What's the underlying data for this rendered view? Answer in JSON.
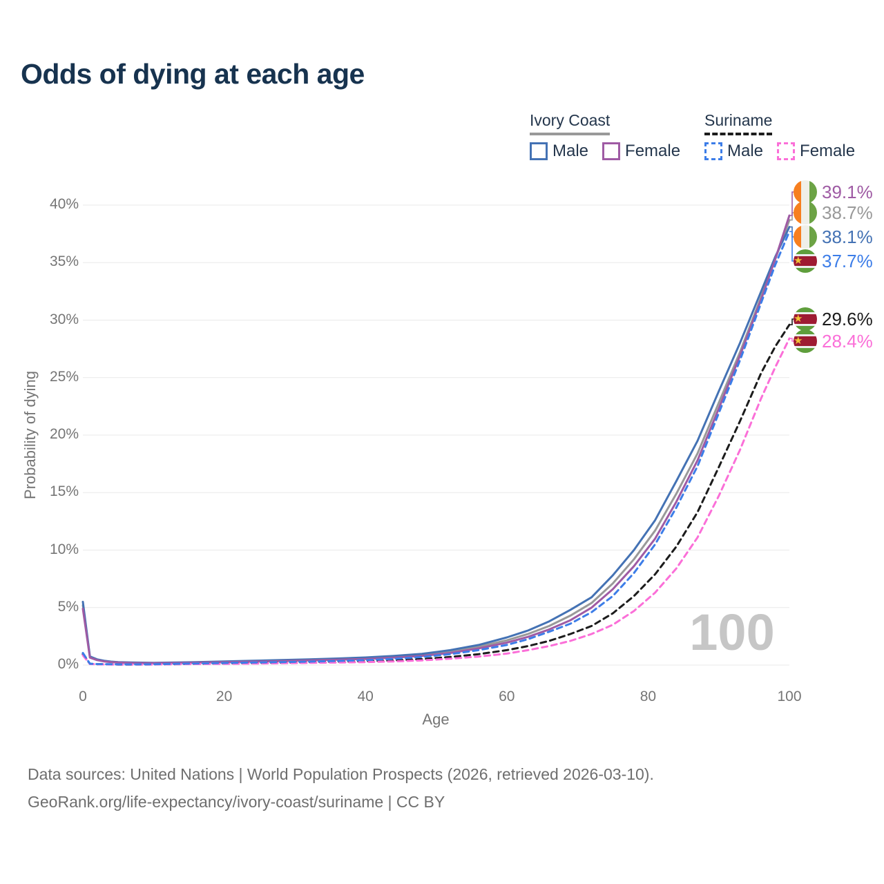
{
  "title": "Odds of dying at each age",
  "watermark": "100",
  "icons": {
    "suriname-star": "★"
  },
  "legend": {
    "groups": [
      {
        "label": "Ivory Coast",
        "line_style": "solid",
        "items": [
          {
            "label": "Male",
            "series": "ic_male"
          },
          {
            "label": "Female",
            "series": "ic_female"
          }
        ]
      },
      {
        "label": "Suriname",
        "line_style": "dashed",
        "items": [
          {
            "label": "Male",
            "series": "sur_male"
          },
          {
            "label": "Female",
            "series": "sur_female"
          }
        ]
      }
    ]
  },
  "footer": {
    "line1": "Data sources: United Nations | World Population Prospects (2026, retrieved 2026-03-10).",
    "line2": "GeoRank.org/life-expectancy/ivory-coast/suriname | CC BY"
  },
  "chart_data": {
    "type": "line",
    "title": "Odds of dying at each age",
    "xlabel": "Age",
    "ylabel": "Probability of dying",
    "xlim": [
      0,
      100
    ],
    "ylim": [
      0,
      40
    ],
    "grid": "horizontal",
    "x_ticks": [
      {
        "v": 0,
        "label": "0"
      },
      {
        "v": 20,
        "label": "20"
      },
      {
        "v": 40,
        "label": "40"
      },
      {
        "v": 60,
        "label": "60"
      },
      {
        "v": 80,
        "label": "80"
      },
      {
        "v": 100,
        "label": "100"
      }
    ],
    "y_ticks": [
      {
        "v": 0,
        "label": "0%"
      },
      {
        "v": 5,
        "label": "5%"
      },
      {
        "v": 10,
        "label": "10%"
      },
      {
        "v": 15,
        "label": "15%"
      },
      {
        "v": 20,
        "label": "20%"
      },
      {
        "v": 25,
        "label": "25%"
      },
      {
        "v": 30,
        "label": "30%"
      },
      {
        "v": 35,
        "label": "35%"
      },
      {
        "v": 40,
        "label": "40%"
      }
    ],
    "series": [
      {
        "id": "ic_total",
        "name": "Ivory Coast (both sexes)",
        "country": "Ivory Coast",
        "sex": "total",
        "color": "#999999",
        "dash": false,
        "end_label": "38.7%",
        "flag": "ivory-coast",
        "points": [
          [
            0,
            5.2
          ],
          [
            1,
            0.7
          ],
          [
            2,
            0.47
          ],
          [
            3,
            0.35
          ],
          [
            4,
            0.28
          ],
          [
            5,
            0.24
          ],
          [
            7,
            0.2
          ],
          [
            10,
            0.18
          ],
          [
            13,
            0.2
          ],
          [
            16,
            0.24
          ],
          [
            20,
            0.29
          ],
          [
            24,
            0.34
          ],
          [
            28,
            0.39
          ],
          [
            32,
            0.45
          ],
          [
            36,
            0.52
          ],
          [
            40,
            0.6
          ],
          [
            44,
            0.73
          ],
          [
            48,
            0.9
          ],
          [
            52,
            1.18
          ],
          [
            56,
            1.6
          ],
          [
            60,
            2.15
          ],
          [
            63,
            2.7
          ],
          [
            66,
            3.4
          ],
          [
            69,
            4.3
          ],
          [
            72,
            5.4
          ],
          [
            75,
            7.1
          ],
          [
            78,
            9.2
          ],
          [
            81,
            11.7
          ],
          [
            84,
            14.9
          ],
          [
            87,
            18.4
          ],
          [
            90,
            22.8
          ],
          [
            93,
            27.2
          ],
          [
            96,
            32.0
          ],
          [
            98,
            35.3
          ],
          [
            100,
            38.7
          ]
        ]
      },
      {
        "id": "ic_male",
        "name": "Ivory Coast Male",
        "country": "Ivory Coast",
        "sex": "male",
        "color": "#4472B4",
        "dash": false,
        "end_label": "38.1%",
        "flag": "ivory-coast",
        "points": [
          [
            0,
            5.5
          ],
          [
            1,
            0.75
          ],
          [
            2,
            0.5
          ],
          [
            3,
            0.38
          ],
          [
            4,
            0.3
          ],
          [
            5,
            0.26
          ],
          [
            7,
            0.22
          ],
          [
            10,
            0.2
          ],
          [
            13,
            0.22
          ],
          [
            16,
            0.26
          ],
          [
            20,
            0.32
          ],
          [
            24,
            0.37
          ],
          [
            28,
            0.43
          ],
          [
            32,
            0.49
          ],
          [
            36,
            0.57
          ],
          [
            40,
            0.66
          ],
          [
            44,
            0.8
          ],
          [
            48,
            0.98
          ],
          [
            52,
            1.3
          ],
          [
            56,
            1.75
          ],
          [
            60,
            2.4
          ],
          [
            63,
            3.0
          ],
          [
            66,
            3.8
          ],
          [
            69,
            4.8
          ],
          [
            72,
            5.9
          ],
          [
            75,
            7.8
          ],
          [
            78,
            10.0
          ],
          [
            81,
            12.6
          ],
          [
            84,
            16.0
          ],
          [
            87,
            19.5
          ],
          [
            90,
            23.8
          ],
          [
            93,
            28.0
          ],
          [
            96,
            32.5
          ],
          [
            98,
            35.5
          ],
          [
            100,
            38.1
          ]
        ]
      },
      {
        "id": "ic_female",
        "name": "Ivory Coast Female",
        "country": "Ivory Coast",
        "sex": "female",
        "color": "#9F5BA4",
        "dash": false,
        "end_label": "39.1%",
        "flag": "ivory-coast",
        "points": [
          [
            0,
            4.9
          ],
          [
            1,
            0.65
          ],
          [
            2,
            0.43
          ],
          [
            3,
            0.32
          ],
          [
            4,
            0.26
          ],
          [
            5,
            0.22
          ],
          [
            7,
            0.18
          ],
          [
            10,
            0.16
          ],
          [
            13,
            0.18
          ],
          [
            16,
            0.21
          ],
          [
            20,
            0.25
          ],
          [
            24,
            0.3
          ],
          [
            28,
            0.35
          ],
          [
            32,
            0.4
          ],
          [
            36,
            0.46
          ],
          [
            40,
            0.53
          ],
          [
            44,
            0.65
          ],
          [
            48,
            0.8
          ],
          [
            52,
            1.05
          ],
          [
            56,
            1.45
          ],
          [
            60,
            1.95
          ],
          [
            63,
            2.45
          ],
          [
            66,
            3.1
          ],
          [
            69,
            3.9
          ],
          [
            72,
            5.0
          ],
          [
            75,
            6.6
          ],
          [
            78,
            8.6
          ],
          [
            81,
            11.0
          ],
          [
            84,
            14.2
          ],
          [
            87,
            17.8
          ],
          [
            90,
            22.3
          ],
          [
            93,
            26.9
          ],
          [
            96,
            31.8
          ],
          [
            98,
            35.3
          ],
          [
            100,
            39.1
          ]
        ]
      },
      {
        "id": "sur_total",
        "name": "Suriname (both sexes)",
        "country": "Suriname",
        "sex": "total",
        "color": "#1C1C1C",
        "dash": true,
        "end_label": "29.6%",
        "flag": "suriname",
        "points": [
          [
            0,
            0.95
          ],
          [
            1,
            0.1
          ],
          [
            2,
            0.08
          ],
          [
            3,
            0.07
          ],
          [
            4,
            0.06
          ],
          [
            5,
            0.05
          ],
          [
            7,
            0.05
          ],
          [
            10,
            0.06
          ],
          [
            13,
            0.08
          ],
          [
            16,
            0.11
          ],
          [
            20,
            0.14
          ],
          [
            24,
            0.17
          ],
          [
            28,
            0.2
          ],
          [
            32,
            0.24
          ],
          [
            36,
            0.28
          ],
          [
            40,
            0.33
          ],
          [
            44,
            0.41
          ],
          [
            48,
            0.52
          ],
          [
            52,
            0.7
          ],
          [
            56,
            0.95
          ],
          [
            60,
            1.3
          ],
          [
            63,
            1.65
          ],
          [
            66,
            2.1
          ],
          [
            69,
            2.7
          ],
          [
            72,
            3.4
          ],
          [
            75,
            4.5
          ],
          [
            78,
            6.0
          ],
          [
            81,
            7.9
          ],
          [
            84,
            10.3
          ],
          [
            87,
            13.3
          ],
          [
            90,
            17.2
          ],
          [
            93,
            21.2
          ],
          [
            96,
            25.4
          ],
          [
            98,
            27.7
          ],
          [
            100,
            29.6
          ]
        ]
      },
      {
        "id": "sur_female",
        "name": "Suriname Female",
        "country": "Suriname",
        "sex": "female",
        "color": "#FB6FD8",
        "dash": true,
        "end_label": "28.4%",
        "flag": "suriname",
        "points": [
          [
            0,
            0.85
          ],
          [
            1,
            0.09
          ],
          [
            2,
            0.07
          ],
          [
            3,
            0.06
          ],
          [
            4,
            0.05
          ],
          [
            5,
            0.04
          ],
          [
            7,
            0.04
          ],
          [
            10,
            0.05
          ],
          [
            13,
            0.07
          ],
          [
            16,
            0.09
          ],
          [
            20,
            0.11
          ],
          [
            24,
            0.13
          ],
          [
            28,
            0.16
          ],
          [
            32,
            0.19
          ],
          [
            36,
            0.22
          ],
          [
            40,
            0.26
          ],
          [
            44,
            0.32
          ],
          [
            48,
            0.41
          ],
          [
            52,
            0.55
          ],
          [
            56,
            0.74
          ],
          [
            60,
            1.0
          ],
          [
            63,
            1.3
          ],
          [
            66,
            1.65
          ],
          [
            69,
            2.1
          ],
          [
            72,
            2.7
          ],
          [
            75,
            3.5
          ],
          [
            78,
            4.7
          ],
          [
            81,
            6.3
          ],
          [
            84,
            8.4
          ],
          [
            87,
            11.1
          ],
          [
            90,
            14.7
          ],
          [
            93,
            18.7
          ],
          [
            96,
            23.2
          ],
          [
            98,
            25.9
          ],
          [
            100,
            28.4
          ]
        ]
      },
      {
        "id": "sur_male",
        "name": "Suriname Male",
        "country": "Suriname",
        "sex": "male",
        "color": "#3C7DE8",
        "dash": true,
        "end_label": "37.7%",
        "flag": "suriname",
        "points": [
          [
            0,
            1.05
          ],
          [
            1,
            0.12
          ],
          [
            2,
            0.09
          ],
          [
            3,
            0.08
          ],
          [
            4,
            0.07
          ],
          [
            5,
            0.06
          ],
          [
            7,
            0.06
          ],
          [
            10,
            0.07
          ],
          [
            13,
            0.1
          ],
          [
            16,
            0.14
          ],
          [
            20,
            0.18
          ],
          [
            24,
            0.22
          ],
          [
            28,
            0.26
          ],
          [
            32,
            0.3
          ],
          [
            36,
            0.36
          ],
          [
            40,
            0.43
          ],
          [
            44,
            0.54
          ],
          [
            48,
            0.7
          ],
          [
            52,
            0.95
          ],
          [
            56,
            1.3
          ],
          [
            60,
            1.75
          ],
          [
            63,
            2.25
          ],
          [
            66,
            2.9
          ],
          [
            69,
            3.6
          ],
          [
            72,
            4.6
          ],
          [
            75,
            6.0
          ],
          [
            78,
            8.0
          ],
          [
            81,
            10.5
          ],
          [
            84,
            13.7
          ],
          [
            87,
            17.3
          ],
          [
            90,
            21.9
          ],
          [
            93,
            26.5
          ],
          [
            96,
            31.5
          ],
          [
            98,
            34.8
          ],
          [
            100,
            37.7
          ]
        ]
      }
    ]
  }
}
